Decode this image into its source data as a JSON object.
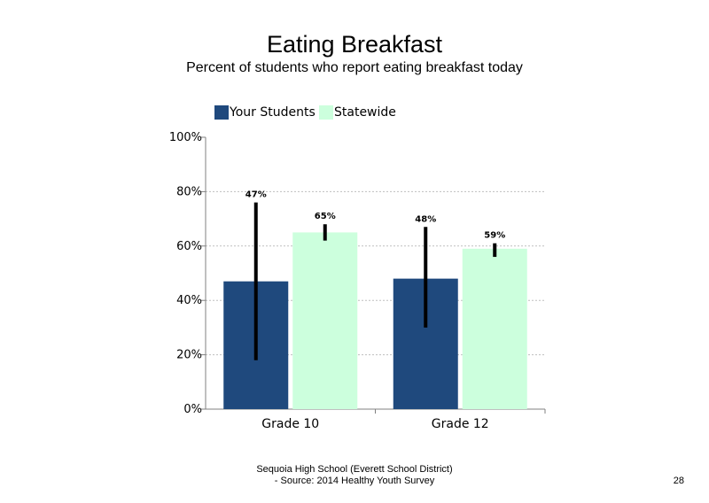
{
  "slide": {
    "title": "Eating Breakfast",
    "subtitle": "Percent of students who report eating breakfast today",
    "footer_line1": "Sequoia High School (Everett School District)",
    "footer_line2": "- Source: 2014 Healthy Youth Survey",
    "page_number": "28"
  },
  "colors": {
    "your_students": "#1F497D",
    "statewide": "#CCFFDD",
    "error_bar": "#000000",
    "grid": "#BFBFBF",
    "axis": "#808080"
  },
  "chart_data": {
    "type": "bar",
    "categories": [
      "Grade 10",
      "Grade 12"
    ],
    "series": [
      {
        "name": "Your Students",
        "values": [
          47,
          48
        ],
        "labels": [
          "47%",
          "48%"
        ],
        "error_low": [
          18,
          30
        ],
        "error_high": [
          76,
          67
        ]
      },
      {
        "name": "Statewide",
        "values": [
          65,
          59
        ],
        "labels": [
          "65%",
          "59%"
        ],
        "error_low": [
          62,
          56
        ],
        "error_high": [
          68,
          61
        ]
      }
    ],
    "ylim": [
      0,
      100
    ],
    "yticks": [
      0,
      20,
      40,
      60,
      80,
      100
    ],
    "ytick_labels": [
      "0%",
      "20%",
      "40%",
      "60%",
      "80%",
      "100%"
    ],
    "grid": true,
    "legend": "top-left",
    "error_bars": true
  }
}
